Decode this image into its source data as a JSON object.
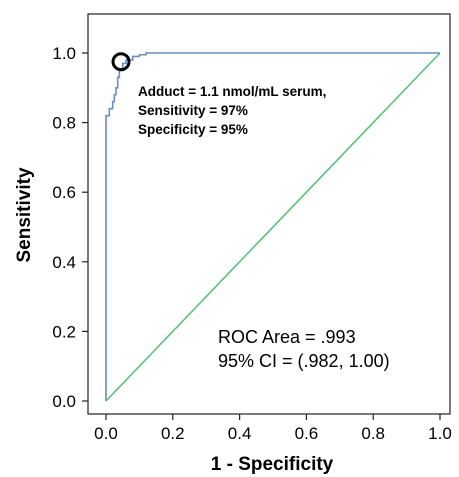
{
  "chart_data": {
    "type": "line",
    "xlabel": "1 - Specificity",
    "ylabel": "Sensitivity",
    "xlim": [
      0.0,
      1.0
    ],
    "ylim": [
      0.0,
      1.0
    ],
    "x_ticks": [
      "0.0",
      "0.2",
      "0.4",
      "0.6",
      "0.8",
      "1.0"
    ],
    "y_ticks": [
      "0.0",
      "0.2",
      "0.4",
      "0.6",
      "0.8",
      "1.0"
    ],
    "grid": false,
    "series": [
      {
        "color": "#6b8cc6",
        "x": [
          0.0,
          0.0,
          0.01,
          0.01,
          0.02,
          0.02,
          0.025,
          0.025,
          0.03,
          0.03,
          0.035,
          0.035,
          0.04,
          0.04,
          0.05,
          0.05,
          0.06,
          0.06,
          0.08,
          0.08,
          0.1,
          0.1,
          0.12,
          0.12,
          1.0
        ],
        "y": [
          0.0,
          0.82,
          0.82,
          0.84,
          0.84,
          0.86,
          0.86,
          0.88,
          0.88,
          0.9,
          0.9,
          0.93,
          0.93,
          0.95,
          0.95,
          0.97,
          0.97,
          0.98,
          0.98,
          0.99,
          0.99,
          0.995,
          0.995,
          1.0,
          1.0
        ]
      },
      {
        "color": "#5cc07a",
        "x": [
          0.0,
          1.0
        ],
        "y": [
          0.0,
          1.0
        ]
      }
    ],
    "marker": {
      "x": 0.045,
      "y": 0.975
    },
    "annotations": [
      {
        "style": "bold",
        "lines": [
          "Adduct = 1.1 nmol/mL serum,",
          "Sensitivity = 97%",
          "Specificity = 95%"
        ]
      },
      {
        "style": "regular",
        "lines": [
          "ROC Area = .993",
          "95% CI = (.982, 1.00)"
        ]
      }
    ]
  }
}
